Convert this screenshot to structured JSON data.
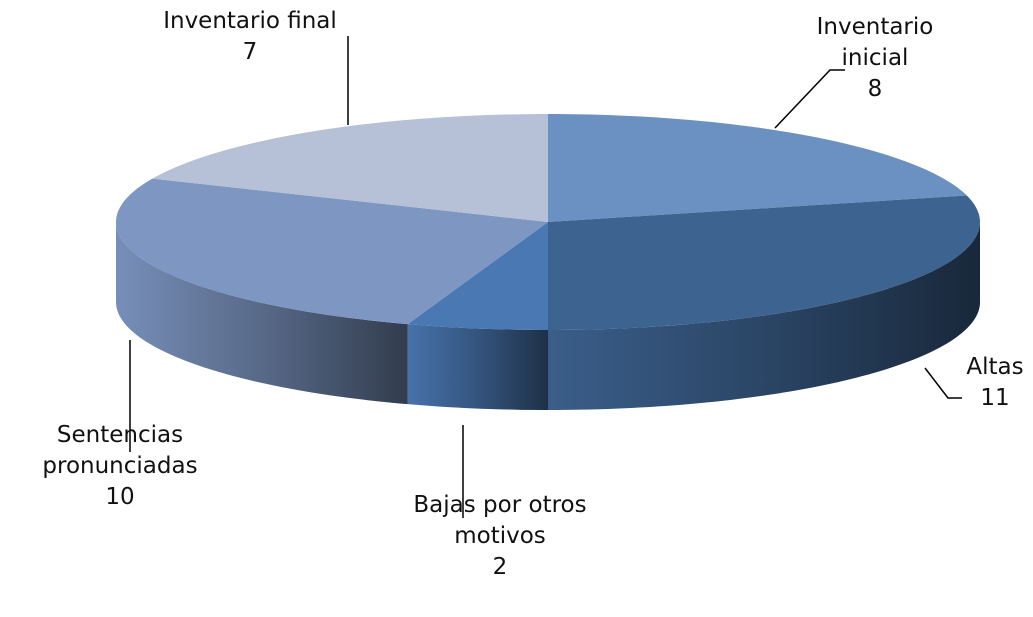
{
  "chart_data": {
    "type": "pie3d",
    "categories": [
      "Inventario inicial",
      "Altas",
      "Bajas por otros motivos",
      "Sentencias pronunciadas",
      "Inventario final"
    ],
    "values": [
      8,
      11,
      2,
      10,
      7
    ],
    "colors": [
      "#6a91c1",
      "#3d6391",
      "#4a78b3",
      "#7d96c2",
      "#b6c0d6"
    ]
  }
}
